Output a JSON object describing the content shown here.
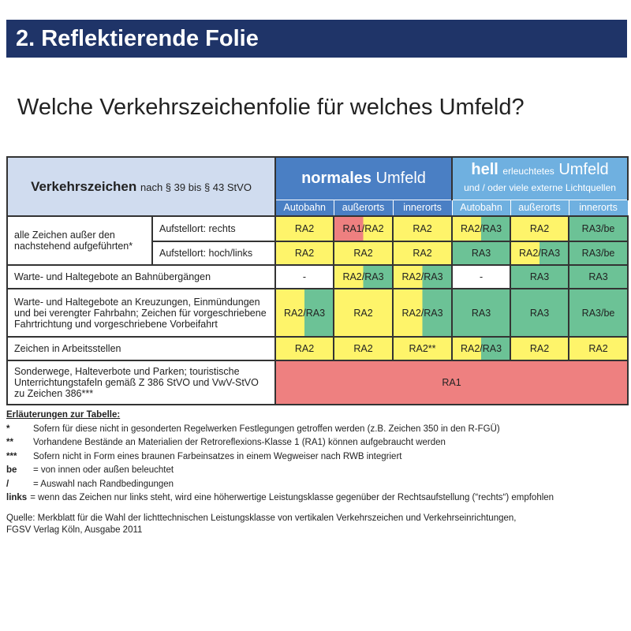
{
  "title": "2. Reflektierende Folie",
  "question": "Welche Verkehrszeichenfolie für welches Umfeld?",
  "colors": {
    "title_bg": "#1f3468",
    "normal": "#4a7fc4",
    "hell": "#6fb0e0",
    "yellow": "#fef46a",
    "green": "#6cc296",
    "red": "#ee8080",
    "white": "#ffffff"
  },
  "table": {
    "header": {
      "main": "Verkehrszeichen",
      "main_sub": "nach § 39 bis § 43 StVO",
      "normal_bold": "normales",
      "normal_rest": "Umfeld",
      "hell_bold": "hell",
      "hell_small": "erleuchtetes",
      "hell_rest": "Umfeld",
      "hell_sub": "und / oder viele externe Lichtquellen"
    },
    "subheaders": [
      "Autobahn",
      "außerorts",
      "innerorts",
      "Autobahn",
      "außerorts",
      "innerorts"
    ],
    "group1_label": "alle Zeichen außer den nachstehend aufgeführten*",
    "rows": [
      {
        "label": "Aufstellort: rechts",
        "cells": [
          {
            "t": "RA2",
            "c": [
              "yellow"
            ]
          },
          {
            "t": "RA1/RA2",
            "c": [
              "red",
              "yellow"
            ]
          },
          {
            "t": "RA2",
            "c": [
              "yellow"
            ]
          },
          {
            "t": "RA2/RA3",
            "c": [
              "yellow",
              "green"
            ]
          },
          {
            "t": "RA2",
            "c": [
              "yellow"
            ]
          },
          {
            "t": "RA3/be",
            "c": [
              "green"
            ]
          }
        ]
      },
      {
        "label": "Aufstellort: hoch/links",
        "cells": [
          {
            "t": "RA2",
            "c": [
              "yellow"
            ]
          },
          {
            "t": "RA2",
            "c": [
              "yellow"
            ]
          },
          {
            "t": "RA2",
            "c": [
              "yellow"
            ]
          },
          {
            "t": "RA3",
            "c": [
              "green"
            ]
          },
          {
            "t": "RA2/RA3",
            "c": [
              "yellow",
              "green"
            ]
          },
          {
            "t": "RA3/be",
            "c": [
              "green"
            ]
          }
        ]
      },
      {
        "label": "Warte- und Haltegebote an Bahnübergängen",
        "cells": [
          {
            "t": "-",
            "c": [
              "white"
            ]
          },
          {
            "t": "RA2/RA3",
            "c": [
              "yellow",
              "green"
            ]
          },
          {
            "t": "RA2/RA3",
            "c": [
              "yellow",
              "green"
            ]
          },
          {
            "t": "-",
            "c": [
              "white"
            ]
          },
          {
            "t": "RA3",
            "c": [
              "green"
            ]
          },
          {
            "t": "RA3",
            "c": [
              "green"
            ]
          }
        ]
      },
      {
        "label": "Warte- und Haltegebote an Kreuzungen, Einmündungen und bei verengter Fahrbahn; Zeichen für vorgeschriebene Fahrtrichtung und vorgeschriebene Vorbeifahrt",
        "cells": [
          {
            "t": "RA2/RA3",
            "c": [
              "yellow",
              "green"
            ]
          },
          {
            "t": "RA2",
            "c": [
              "yellow"
            ]
          },
          {
            "t": "RA2/RA3",
            "c": [
              "yellow",
              "green"
            ]
          },
          {
            "t": "RA3",
            "c": [
              "green"
            ]
          },
          {
            "t": "RA3",
            "c": [
              "green"
            ]
          },
          {
            "t": "RA3/be",
            "c": [
              "green"
            ]
          }
        ]
      },
      {
        "label": "Zeichen in Arbeitsstellen",
        "cells": [
          {
            "t": "RA2",
            "c": [
              "yellow"
            ]
          },
          {
            "t": "RA2",
            "c": [
              "yellow"
            ]
          },
          {
            "t": "RA2**",
            "c": [
              "yellow"
            ]
          },
          {
            "t": "RA2/RA3",
            "c": [
              "yellow",
              "green"
            ]
          },
          {
            "t": "RA2",
            "c": [
              "yellow"
            ]
          },
          {
            "t": "RA2",
            "c": [
              "yellow"
            ]
          }
        ]
      },
      {
        "label": "Sonderwege, Halteverbote und Parken; touristische Unterrichtungstafeln gemäß Z 386 StVO und VwV-StVO zu Zeichen 386***",
        "cells": [
          {
            "t": "RA1",
            "c": [
              "red"
            ],
            "span": 6
          }
        ]
      }
    ]
  },
  "notes": {
    "heading": "Erläuterungen zur Tabelle:",
    "items": [
      {
        "key": "*",
        "text": "Sofern für diese nicht in gesonderten Regelwerken Festlegungen getroffen werden (z.B. Zeichen 350 in den R-FGÜ)"
      },
      {
        "key": "**",
        "text": "Vorhandene Bestände an Materialien der Retroreflexions-Klasse 1 (RA1) können aufgebraucht werden"
      },
      {
        "key": "***",
        "text": "Sofern nicht in Form eines braunen Farbeinsatzes in einem Wegweiser nach RWB integriert"
      },
      {
        "key": "be",
        "text": "= von innen oder außen beleuchtet"
      },
      {
        "key": "/",
        "text": "= Auswahl nach Randbedingungen"
      },
      {
        "key": "links",
        "text": "= wenn das Zeichen nur links steht, wird eine höherwertige Leistungsklasse gegenüber der Rechtsaufstellung (“rechts“) empfohlen"
      }
    ]
  },
  "source": [
    "Quelle: Merkblatt für die Wahl der lichttechnischen Leistungsklasse von vertikalen Verkehrszeichen und Verkehrseinrichtungen,",
    "FGSV Verlag Köln, Ausgabe 2011"
  ]
}
